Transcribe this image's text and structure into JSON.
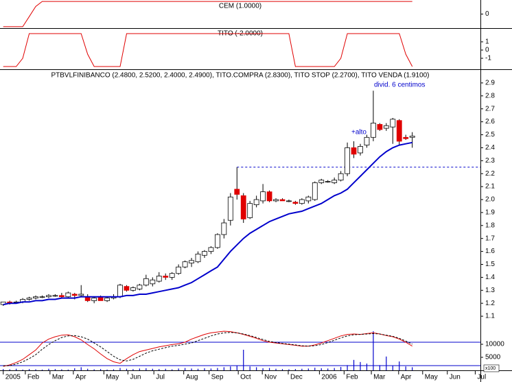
{
  "chart_data": [
    {
      "type": "line",
      "title": "CEM (1.0000)",
      "xlim": [
        -0.5,
        73.5
      ],
      "ylim": [
        -1.06,
        1.06
      ],
      "yticks": [
        0
      ],
      "series": [
        {
          "color": "#e00000",
          "values": [
            -1,
            -1,
            -1,
            -1,
            -0.2,
            0.6,
            1,
            1,
            1,
            1,
            1,
            1,
            1,
            1,
            1,
            1,
            1,
            1,
            1,
            1,
            1,
            1,
            1,
            1,
            1,
            1,
            1,
            1,
            1,
            1,
            1,
            1,
            1,
            1,
            1,
            1,
            1,
            1,
            1,
            1,
            1,
            1,
            1,
            1,
            1,
            1,
            1,
            1,
            1,
            1,
            1,
            1,
            1,
            1,
            1,
            1,
            1,
            1,
            1,
            1,
            1,
            1,
            1,
            1
          ]
        }
      ]
    },
    {
      "type": "line",
      "title": "TITO (-2.0000)",
      "xlim": [
        -0.5,
        73.5
      ],
      "ylim": [
        -2.25,
        2.58
      ],
      "yticks": [
        1,
        0,
        -1
      ],
      "series": [
        {
          "color": "#e00000",
          "values": [
            -2,
            -2,
            -2,
            -1,
            2,
            2,
            2,
            2,
            2,
            2,
            2,
            2,
            2,
            -0.5,
            -2,
            -2,
            -2,
            -2,
            -2,
            2,
            2,
            2,
            2,
            2,
            2,
            2,
            2,
            2,
            2,
            2,
            2,
            2,
            2,
            2,
            2,
            2,
            2,
            2,
            2,
            2,
            2,
            2,
            2,
            2,
            2,
            -2,
            -2,
            -2,
            -2,
            -2,
            -2,
            -2,
            -1,
            2,
            2,
            2,
            2,
            2,
            2,
            2,
            2,
            2,
            -0.5,
            -2
          ]
        }
      ]
    },
    {
      "type": "candlestick",
      "title": "PTBVLFINIBANCO (2.4800, 2.5200, 2.4000, 2.4900), TITO.COMPRA (2.8300), TITO STOP (2.2700), TITO VENDA (1.9100)",
      "xlim": [
        -0.5,
        73.5
      ],
      "ylim": [
        0.91,
        3.0
      ],
      "yticks": [
        1.1,
        1.2,
        1.3,
        1.4,
        1.5,
        1.6,
        1.7,
        1.8,
        1.9,
        {
          "value": 2,
          "label": "2.0"
        },
        2.1,
        2.2,
        2.3,
        2.4,
        2.5,
        2.6,
        2.7,
        2.8,
        2.9
      ],
      "up_color": "#ffffff",
      "down_color": "#e00000",
      "open": [
        1.19,
        1.21,
        1.21,
        1.21,
        1.23,
        1.24,
        1.25,
        1.25,
        1.26,
        1.26,
        1.25,
        1.27,
        1.26,
        1.25,
        1.22,
        1.25,
        1.22,
        1.24,
        1.25,
        1.33,
        1.3,
        1.31,
        1.34,
        1.35,
        1.37,
        1.41,
        1.4,
        1.43,
        1.48,
        1.51,
        1.52,
        1.57,
        1.6,
        1.63,
        1.73,
        1.84,
        2.08,
        2.03,
        1.86,
        1.96,
        1.99,
        2.06,
        1.99,
        2.0,
        1.99,
        1.98,
        1.97,
        1.99,
        2.0,
        2.13,
        2.14,
        2.13,
        2.15,
        2.2,
        2.4,
        2.36,
        2.42,
        2.48,
        2.58,
        2.55,
        2.56,
        2.61,
        2.48,
        2.48
      ],
      "high": [
        1.21,
        1.22,
        1.22,
        1.24,
        1.25,
        1.26,
        1.26,
        1.27,
        1.27,
        1.28,
        1.29,
        1.28,
        1.34,
        1.27,
        1.25,
        1.26,
        1.25,
        1.27,
        1.35,
        1.34,
        1.33,
        1.35,
        1.42,
        1.4,
        1.44,
        1.43,
        1.44,
        1.5,
        1.53,
        1.55,
        1.6,
        1.61,
        1.64,
        1.74,
        1.85,
        2.05,
        2.25,
        2.05,
        1.99,
        2.03,
        2.12,
        2.07,
        2.01,
        2.01,
        2.0,
        1.99,
        2.01,
        2.03,
        2.14,
        2.16,
        2.15,
        2.17,
        2.22,
        2.44,
        2.45,
        2.43,
        2.5,
        2.84,
        2.59,
        2.59,
        2.63,
        2.62,
        2.5,
        2.52
      ],
      "low": [
        1.18,
        1.19,
        1.2,
        1.2,
        1.22,
        1.23,
        1.24,
        1.24,
        1.25,
        1.24,
        1.24,
        1.23,
        1.25,
        1.21,
        1.2,
        1.22,
        1.21,
        1.23,
        1.24,
        1.29,
        1.29,
        1.3,
        1.33,
        1.33,
        1.36,
        1.38,
        1.38,
        1.42,
        1.47,
        1.48,
        1.51,
        1.55,
        1.58,
        1.62,
        1.7,
        1.8,
        2.0,
        1.82,
        1.85,
        1.94,
        1.97,
        1.98,
        1.98,
        1.99,
        1.98,
        1.96,
        1.96,
        1.97,
        1.99,
        2.12,
        2.13,
        2.12,
        2.14,
        2.18,
        2.32,
        2.34,
        2.4,
        2.45,
        2.53,
        2.53,
        2.43,
        2.42,
        2.46,
        2.4
      ],
      "close": [
        1.21,
        1.2,
        1.21,
        1.23,
        1.24,
        1.25,
        1.25,
        1.26,
        1.26,
        1.25,
        1.28,
        1.26,
        1.27,
        1.22,
        1.24,
        1.22,
        1.24,
        1.25,
        1.34,
        1.3,
        1.32,
        1.34,
        1.39,
        1.38,
        1.41,
        1.4,
        1.43,
        1.48,
        1.52,
        1.53,
        1.58,
        1.6,
        1.63,
        1.73,
        1.82,
        2.02,
        2.04,
        1.85,
        1.97,
        2.0,
        2.06,
        1.99,
        2.0,
        1.99,
        1.99,
        1.97,
        2.0,
        2.02,
        2.13,
        2.15,
        2.14,
        2.15,
        2.2,
        2.4,
        2.35,
        2.41,
        2.48,
        2.59,
        2.54,
        2.57,
        2.62,
        2.45,
        2.47,
        2.49
      ],
      "series": [
        {
          "color": "#0000cc",
          "values": [
            1.19,
            1.2,
            1.2,
            1.21,
            1.21,
            1.22,
            1.22,
            1.23,
            1.23,
            1.24,
            1.24,
            1.24,
            1.25,
            1.25,
            1.25,
            1.25,
            1.25,
            1.25,
            1.25,
            1.26,
            1.26,
            1.27,
            1.27,
            1.28,
            1.29,
            1.3,
            1.31,
            1.32,
            1.34,
            1.36,
            1.39,
            1.42,
            1.45,
            1.48,
            1.54,
            1.6,
            1.65,
            1.7,
            1.74,
            1.77,
            1.8,
            1.83,
            1.85,
            1.87,
            1.89,
            1.9,
            1.91,
            1.93,
            1.95,
            1.97,
            2.0,
            2.03,
            2.05,
            2.08,
            2.13,
            2.18,
            2.23,
            2.28,
            2.33,
            2.37,
            2.4,
            2.42,
            2.43,
            2.44
          ]
        }
      ],
      "hline": {
        "value": 2.25,
        "from": 36,
        "color": "#0000cc"
      },
      "annotations": [
        "+alto",
        "divid. 6 centimos"
      ]
    },
    {
      "type": "bar",
      "xlim": [
        -0.5,
        73.5
      ],
      "ylim": [
        0,
        15000
      ],
      "yticks": [
        10000,
        5000
      ],
      "unit_label": "x100",
      "y2lim": [
        0,
        100
      ],
      "reference_lines": [
        72,
        12
      ],
      "color": "#0000cc",
      "values": [
        500,
        400,
        600,
        300,
        500,
        400,
        300,
        600,
        500,
        400,
        300,
        800,
        1200,
        600,
        400,
        500,
        300,
        400,
        900,
        600,
        500,
        700,
        800,
        600,
        500,
        600,
        400,
        700,
        900,
        700,
        600,
        800,
        700,
        900,
        1200,
        1500,
        1800,
        7900,
        1500,
        1200,
        800,
        900,
        600,
        500,
        400,
        500,
        600,
        700,
        1000,
        800,
        700,
        900,
        1300,
        2000,
        4000,
        3200,
        2600,
        15000,
        2000,
        5300,
        1800,
        3400,
        1500,
        1200
      ],
      "series": [
        {
          "color": "#e00000",
          "axis": "y2",
          "values": [
            10,
            14,
            20,
            28,
            40,
            52,
            70,
            80,
            86,
            90,
            91,
            86,
            78,
            66,
            55,
            42,
            30,
            22,
            18,
            30,
            40,
            48,
            52,
            56,
            60,
            63,
            66,
            68,
            72,
            80,
            86,
            92,
            96,
            98,
            100,
            99,
            96,
            92,
            87,
            82,
            76,
            72,
            70,
            68,
            66,
            64,
            62,
            62,
            65,
            70,
            76,
            82,
            88,
            92,
            93,
            92,
            94,
            96,
            93,
            89,
            86,
            80,
            72,
            62
          ]
        },
        {
          "color": "#000000",
          "axis": "y2",
          "dashed": true,
          "values": [
            12,
            12,
            16,
            22,
            30,
            40,
            54,
            66,
            76,
            84,
            88,
            89,
            86,
            80,
            70,
            60,
            48,
            36,
            27,
            24,
            28,
            36,
            44,
            50,
            54,
            58,
            62,
            64,
            67,
            70,
            76,
            82,
            88,
            93,
            96,
            97,
            96,
            93,
            89,
            84,
            79,
            74,
            71,
            69,
            67,
            65,
            63,
            62,
            63,
            66,
            71,
            77,
            83,
            88,
            91,
            92,
            93,
            94,
            93,
            90,
            87,
            82,
            75,
            67
          ]
        }
      ],
      "xticks": [
        {
          "value": 0,
          "label": "2005"
        },
        {
          "value": 3.4,
          "label": "Feb"
        },
        {
          "value": 7.2,
          "label": "Mar"
        },
        {
          "value": 10.8,
          "label": "Apr"
        },
        {
          "value": 15.5,
          "label": "May"
        },
        {
          "value": 19.2,
          "label": "Jun"
        },
        {
          "value": 23.2,
          "label": "Jul"
        },
        {
          "value": 27.8,
          "label": "Aug"
        },
        {
          "value": 31.7,
          "label": "Sep"
        },
        {
          "value": 36.2,
          "label": "Oct"
        },
        {
          "value": 39.9,
          "label": "Nov"
        },
        {
          "value": 43.9,
          "label": "Dec"
        },
        {
          "value": 48.7,
          "label": "2006"
        },
        {
          "value": 52.5,
          "label": "Feb"
        },
        {
          "value": 56.7,
          "label": "Mar"
        },
        {
          "value": 60.9,
          "label": "Apr"
        },
        {
          "value": 64.6,
          "label": "May"
        },
        {
          "value": 68.4,
          "label": "Jun"
        },
        {
          "value": 72.7,
          "label": "Jul"
        }
      ]
    }
  ]
}
